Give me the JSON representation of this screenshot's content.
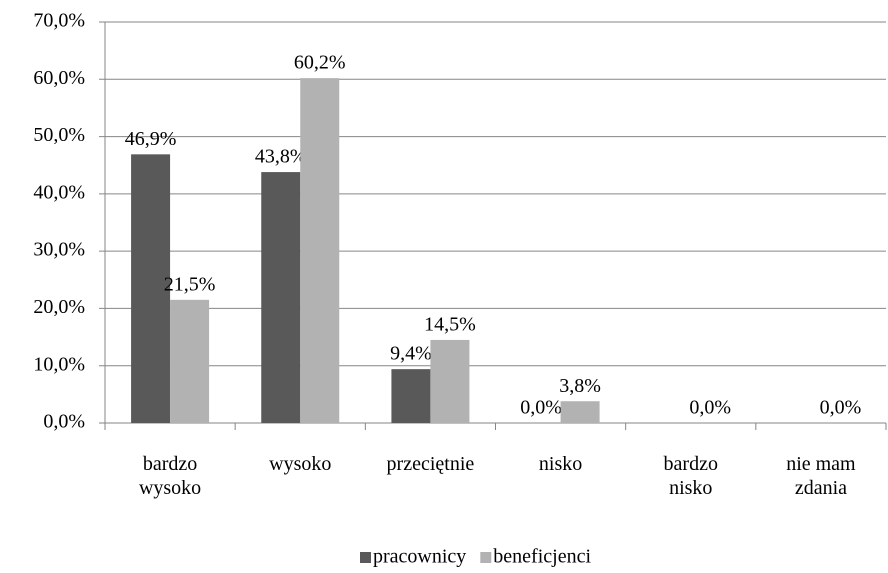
{
  "chart_data": {
    "type": "bar",
    "categories": [
      "bardzo\nwysoko",
      "wysoko",
      "przeciętnie",
      "nisko",
      "bardzo\nnisko",
      "nie mam\nzdania"
    ],
    "series": [
      {
        "name": "pracownicy",
        "color": "#595959",
        "values": [
          46.9,
          43.8,
          9.4,
          0.0,
          null,
          null
        ],
        "value_labels": [
          "46,9%",
          "43,8%",
          "9,4%",
          "0,0%",
          null,
          null
        ]
      },
      {
        "name": "beneficjenci",
        "color": "#b2b2b2",
        "values": [
          21.5,
          60.2,
          14.5,
          3.8,
          0.0,
          0.0
        ],
        "value_labels": [
          "21,5%",
          "60,2%",
          "14,5%",
          "3,8%",
          "0,0%",
          "0,0%"
        ]
      }
    ],
    "ylim": [
      0,
      70
    ],
    "yticks": [
      {
        "value": 0,
        "label": "0,0%"
      },
      {
        "value": 10,
        "label": "10,0%"
      },
      {
        "value": 20,
        "label": "20,0%"
      },
      {
        "value": 30,
        "label": "30,0%"
      },
      {
        "value": 40,
        "label": "40,0%"
      },
      {
        "value": 50,
        "label": "50,0%"
      },
      {
        "value": 60,
        "label": "60,0%"
      },
      {
        "value": 70,
        "label": "70,0%"
      }
    ],
    "grid": true,
    "legend": "bottom"
  }
}
